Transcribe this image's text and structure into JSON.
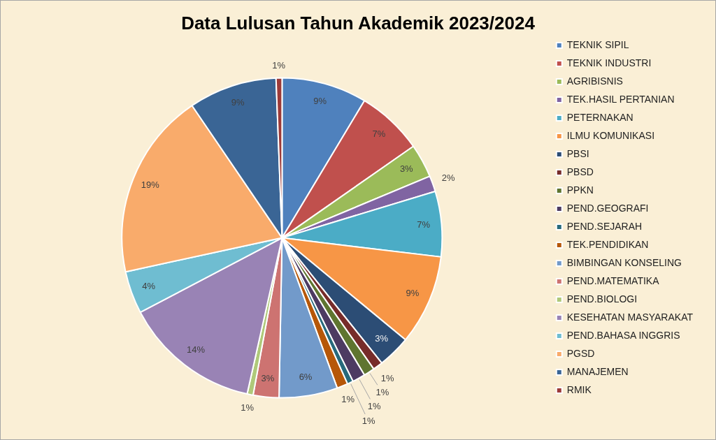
{
  "chart_data": {
    "type": "pie",
    "title": "Data Lulusan Tahun Akademik 2023/2024",
    "categories": [
      "TEKNIK SIPIL",
      "TEKNIK INDUSTRI",
      "AGRIBISNIS",
      "TEK.HASIL PERTANIAN",
      "PETERNAKAN",
      "ILMU KOMUNIKASI",
      "PBSI",
      "PBSD",
      "PPKN",
      "PEND.GEOGRAFI",
      "PEND.SEJARAH",
      "TEK.PENDIDIKAN",
      "BIMBINGAN KONSELING",
      "PEND.MATEMATIKA",
      "PEND.BIOLOGI",
      "KESEHATAN MASYARAKAT",
      "PEND.BAHASA INGGRIS",
      "PGSD",
      "MANAJEMEN",
      "RMIK"
    ],
    "values": [
      8.6,
      6.7,
      3.4,
      1.6,
      6.6,
      9.1,
      3.3,
      1.0,
      1.1,
      1.3,
      0.6,
      1.1,
      5.9,
      2.6,
      0.6,
      13.8,
      4.3,
      18.9,
      8.9,
      0.6
    ],
    "value_labels": [
      "9%",
      "7%",
      "3%",
      "2%",
      "7%",
      "9%",
      "3%",
      "1%",
      "1%",
      "1%",
      "1%",
      "1%",
      "6%",
      "3%",
      "1%",
      "14%",
      "4%",
      "19%",
      "9%",
      "1%"
    ],
    "colors": [
      "#4f81bd",
      "#c0504d",
      "#9bbb59",
      "#8064a2",
      "#4bacc6",
      "#f79646",
      "#2c4d75",
      "#772c2a",
      "#5f7530",
      "#4d3b62",
      "#276a7c",
      "#b65708",
      "#729aca",
      "#cd7371",
      "#afc97a",
      "#9983b5",
      "#6fbdd1",
      "#f9ab6b",
      "#3a6595",
      "#9c3a38"
    ],
    "legend": "right"
  }
}
